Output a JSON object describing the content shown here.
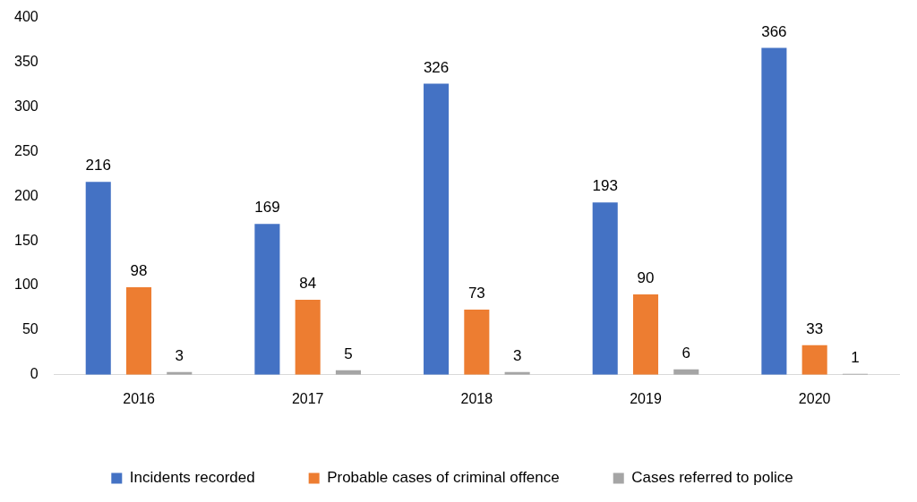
{
  "chart_data": {
    "type": "bar",
    "categories": [
      "2016",
      "2017",
      "2018",
      "2019",
      "2020"
    ],
    "series": [
      {
        "name": "Incidents recorded",
        "color": "#4472c4",
        "values": [
          216,
          169,
          326,
          193,
          366
        ]
      },
      {
        "name": "Probable cases of criminal offence",
        "color": "#ed7d31",
        "values": [
          98,
          84,
          73,
          90,
          33
        ]
      },
      {
        "name": "Cases referred to police",
        "color": "#a5a5a5",
        "values": [
          3,
          5,
          3,
          6,
          1
        ]
      }
    ],
    "ylim": [
      0,
      400
    ],
    "yticks": [
      0,
      50,
      100,
      150,
      200,
      250,
      300,
      350,
      400
    ],
    "grid": false,
    "legend": "bottom",
    "data_labels": true
  }
}
